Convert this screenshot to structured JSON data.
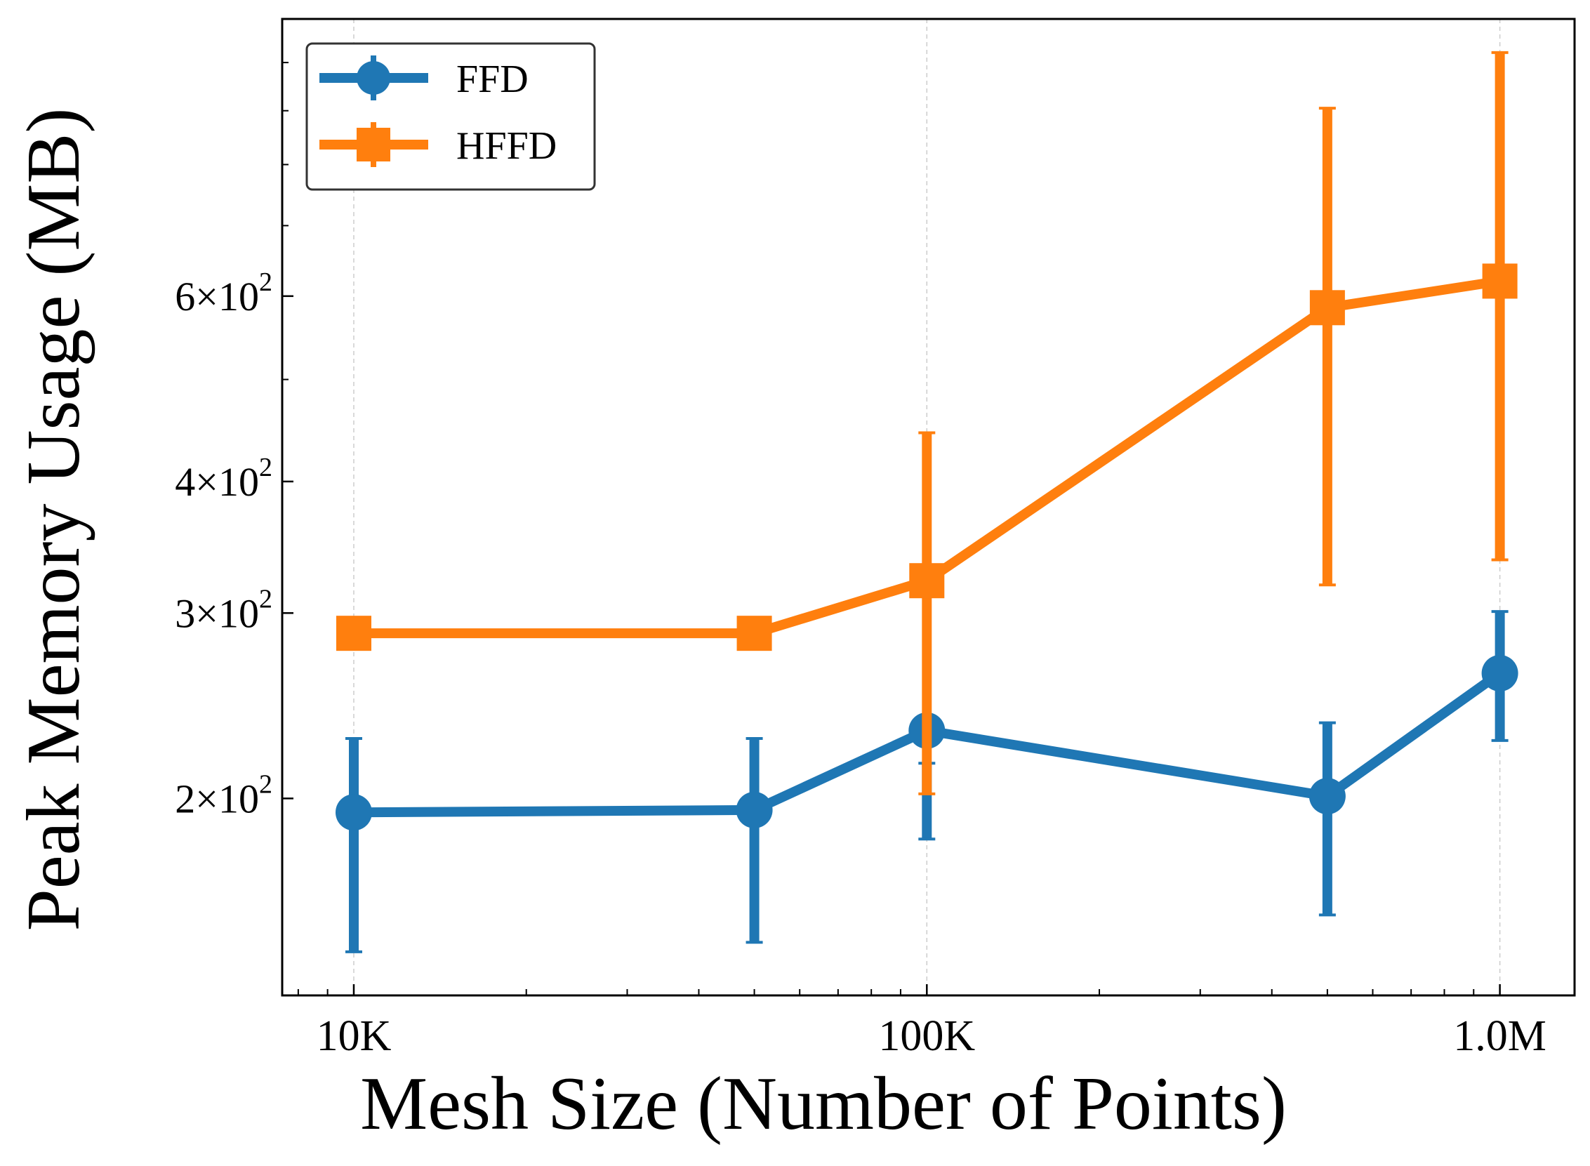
{
  "chart_data": {
    "type": "line",
    "xlabel": "Mesh Size (Number of Points)",
    "ylabel": "Peak Memory Usage (MB)",
    "x_scale": "log",
    "y_scale": "log",
    "xlim": [
      7500,
      1350000
    ],
    "ylim": [
      130,
      1100
    ],
    "x_ticks": [
      {
        "value": 10000,
        "label": "10K"
      },
      {
        "value": 100000,
        "label": "100K"
      },
      {
        "value": 1000000,
        "label": "1.0M"
      }
    ],
    "y_ticks": [
      {
        "value": 200,
        "mantissa": "2",
        "base": "10",
        "exp": "2"
      },
      {
        "value": 300,
        "mantissa": "3",
        "base": "10",
        "exp": "2"
      },
      {
        "value": 400,
        "mantissa": "4",
        "base": "10",
        "exp": "2"
      },
      {
        "value": 600,
        "mantissa": "6",
        "base": "10",
        "exp": "2"
      }
    ],
    "y_minor_ticks": [
      500,
      700,
      800,
      900,
      1000
    ],
    "grid": "vertical dashed at major x ticks",
    "legend_position": "top-left",
    "series": [
      {
        "name": "FFD",
        "color": "#1f77b4",
        "marker": "circle",
        "x": [
          10000,
          50000,
          100000,
          500000,
          1000000
        ],
        "y": [
          194,
          195,
          232,
          201,
          263
        ],
        "yerr_low": [
          143,
          146,
          183,
          155,
          227
        ],
        "yerr_high": [
          228,
          228,
          216,
          236,
          301
        ]
      },
      {
        "name": "HFFD",
        "color": "#ff7f0e",
        "marker": "square",
        "x": [
          10000,
          50000,
          100000,
          500000,
          1000000
        ],
        "y": [
          287,
          287,
          322,
          585,
          620
        ],
        "yerr_low": [
          287,
          287,
          202,
          319,
          337
        ],
        "yerr_high": [
          287,
          287,
          445,
          905,
          1022
        ]
      }
    ]
  }
}
